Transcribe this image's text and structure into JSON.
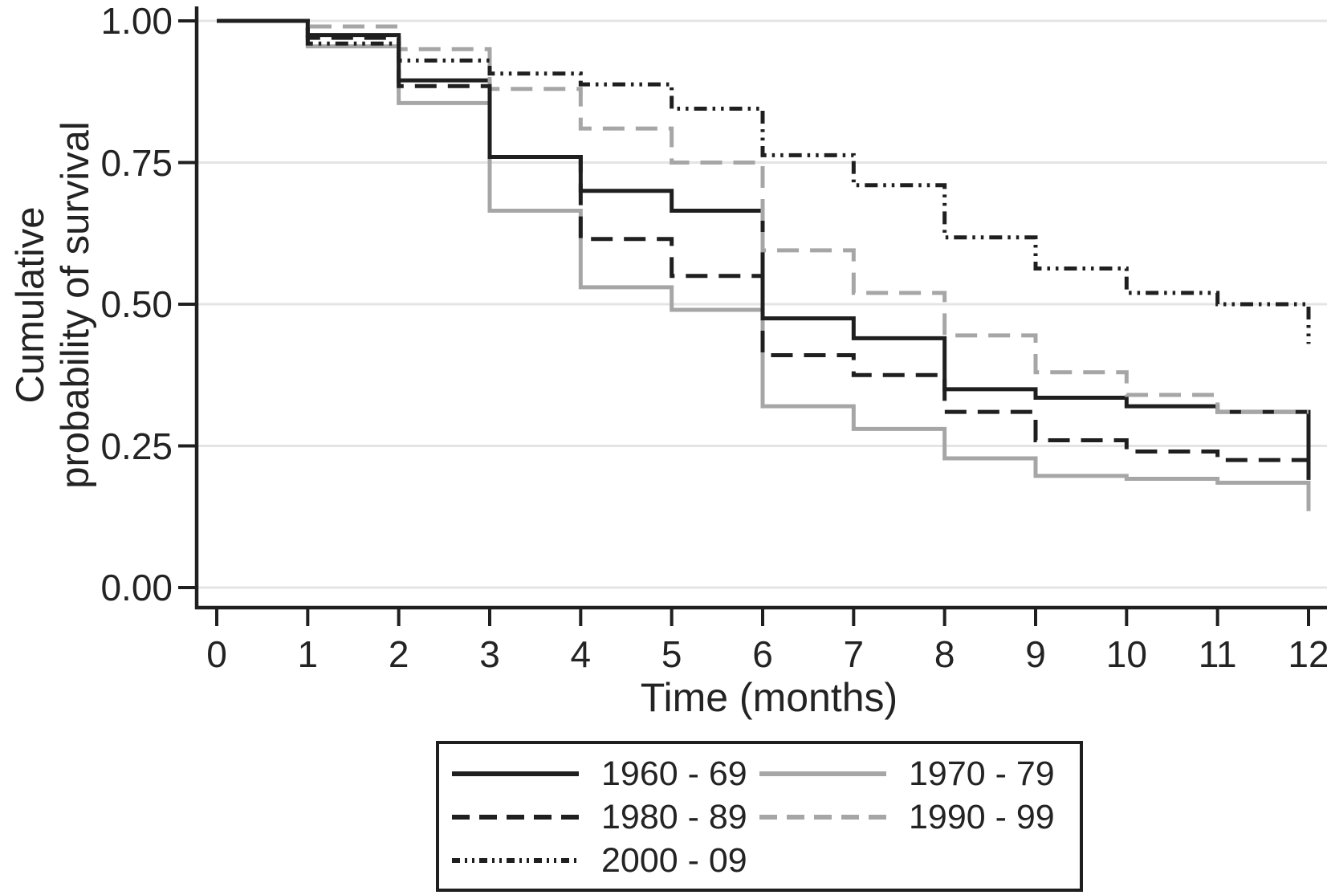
{
  "figure": {
    "background": "#ffffff",
    "axis_color": "#1f1f1f",
    "grid_color": "#e4e4e4",
    "text_color": "#232323",
    "gray_series_color": "#a6a6a6",
    "black_series_color": "#1f1f1f"
  },
  "chart_data": {
    "type": "line",
    "subtype": "kaplan-meier-step",
    "title": "",
    "xlabel": "Time (months)",
    "ylabel": "Cumulative probability of survival",
    "ylabel_lines": [
      "Cumulative",
      "probability of survival"
    ],
    "xlim": [
      0,
      12
    ],
    "ylim": [
      0.0,
      1.0
    ],
    "grid": "horizontal",
    "legend_position": "bottom-box-two-columns",
    "x_ticks": [
      "0",
      "1",
      "2",
      "3",
      "4",
      "5",
      "6",
      "7",
      "8",
      "9",
      "10",
      "11",
      "12"
    ],
    "y_ticks": [
      1.0,
      0.75,
      0.5,
      0.25,
      0.0
    ],
    "y_tick_labels": [
      "1.00",
      "0.75",
      "0.50",
      "0.25",
      "0.00"
    ],
    "x_interval_starts": [
      0,
      1,
      2,
      3,
      4,
      5,
      6,
      7,
      8,
      9,
      10,
      11
    ],
    "series": [
      {
        "name": "1960 - 69",
        "color": "#1f1f1f",
        "line_style": "solid",
        "values": [
          1.0,
          0.975,
          0.895,
          0.76,
          0.7,
          0.665,
          0.475,
          0.44,
          0.35,
          0.335,
          0.32,
          0.31
        ],
        "final_value_at_12": 0.19
      },
      {
        "name": "1970 - 79",
        "color": "#a6a6a6",
        "line_style": "solid",
        "values": [
          1.0,
          0.955,
          0.855,
          0.665,
          0.53,
          0.49,
          0.32,
          0.28,
          0.228,
          0.197,
          0.192,
          0.185
        ],
        "final_value_at_12": 0.135
      },
      {
        "name": "1980 - 89",
        "color": "#1f1f1f",
        "line_style": "dashed",
        "values": [
          1.0,
          0.97,
          0.885,
          0.76,
          0.615,
          0.55,
          0.41,
          0.375,
          0.31,
          0.26,
          0.24,
          0.225
        ],
        "final_value_at_12": 0.22
      },
      {
        "name": "1990 - 99",
        "color": "#a6a6a6",
        "line_style": "dashed",
        "values": [
          1.0,
          0.99,
          0.95,
          0.88,
          0.81,
          0.75,
          0.595,
          0.52,
          0.445,
          0.38,
          0.34,
          0.31
        ],
        "final_value_at_12": 0.31
      },
      {
        "name": "2000 - 09",
        "color": "#1f1f1f",
        "line_style": "dash-dot-dot",
        "values": [
          1.0,
          0.96,
          0.93,
          0.907,
          0.888,
          0.845,
          0.763,
          0.71,
          0.618,
          0.563,
          0.52,
          0.5
        ],
        "final_value_at_12": 0.43
      }
    ],
    "draw_order": [
      1,
      0,
      3,
      2,
      4
    ]
  }
}
